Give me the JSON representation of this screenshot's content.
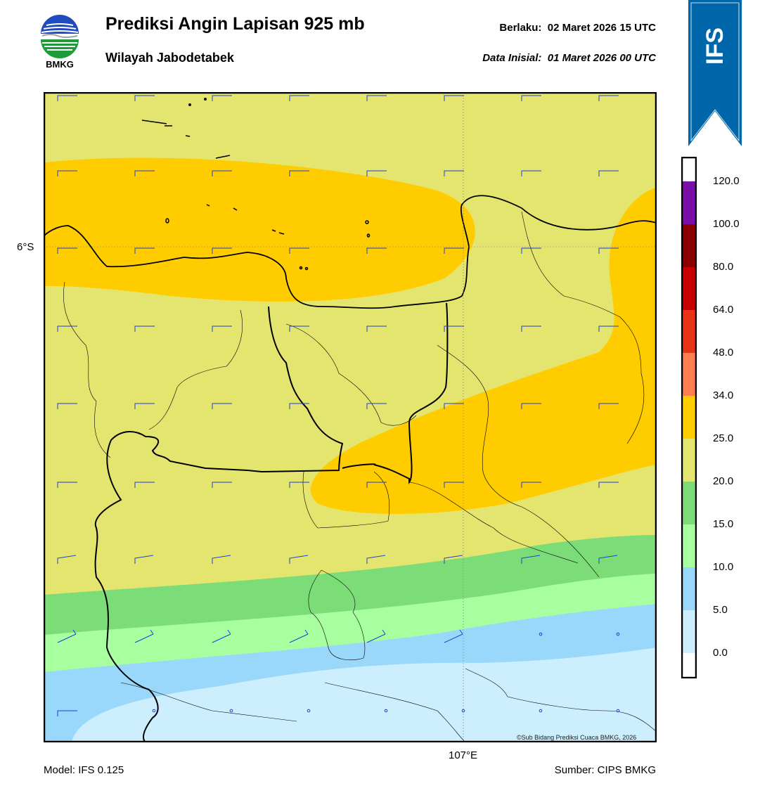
{
  "header": {
    "title": "Prediksi Angin Lapisan 925 mb",
    "subtitle": "Wilayah Jabodetabek",
    "valid_line": "Berlaku:  02 Maret 2026 15 UTC",
    "init_line": "Data Inisial:  01 Maret 2026 00 UTC"
  },
  "logo": {
    "text": "BMKG",
    "icon": "bmkg-logo"
  },
  "badge": {
    "text": "IFS",
    "color": "#0066aa"
  },
  "map": {
    "lat_label": "6°S",
    "lon_label": "107°E",
    "credit": "©Sub Bidang Prediksi Cuaca BMKG, 2026"
  },
  "footer": {
    "model": "Model: IFS 0.125",
    "source": "Sumber: CIPS BMKG"
  },
  "legend": {
    "labels": [
      "0.0",
      "5.0",
      "10.0",
      "15.0",
      "20.0",
      "25.0",
      "34.0",
      "48.0",
      "64.0",
      "80.0",
      "100.0",
      "120.0"
    ],
    "colors": [
      "#ffffff",
      "#cdeefd",
      "#99d8fa",
      "#a8ffa0",
      "#7cdc78",
      "#e4e56f",
      "#ffcc00",
      "#ff7f50",
      "#e83317",
      "#c90000",
      "#8b0000",
      "#7a0ea8",
      "#ff6b8a"
    ]
  }
}
